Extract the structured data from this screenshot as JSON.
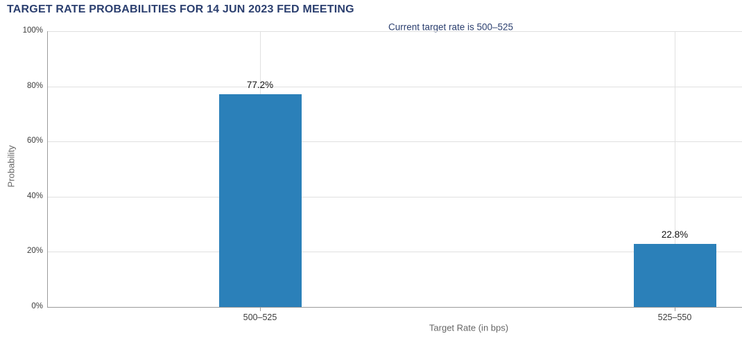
{
  "chart": {
    "title": "TARGET RATE PROBABILITIES FOR 14 JUN 2023 FED MEETING",
    "subtitle": "Current target rate is 500–525"
  },
  "chart_data": {
    "type": "bar",
    "title": "TARGET RATE PROBABILITIES FOR 14 JUN 2023 FED MEETING",
    "subtitle": "Current target rate is 500–525",
    "categories": [
      "500–525",
      "525–550"
    ],
    "values": [
      77.2,
      22.8
    ],
    "data_labels": [
      "77.2%",
      "22.8%"
    ],
    "xlabel": "Target Rate (in bps)",
    "ylabel": "Probability",
    "ylim": [
      0,
      100
    ],
    "yticks": [
      {
        "value": 0,
        "label": "0%"
      },
      {
        "value": 20,
        "label": "20%"
      },
      {
        "value": 40,
        "label": "40%"
      },
      {
        "value": 60,
        "label": "60%"
      },
      {
        "value": 80,
        "label": "80%"
      },
      {
        "value": 100,
        "label": "100%"
      }
    ],
    "grid": true,
    "legend": "none"
  },
  "theme": {
    "navy": "#2b3f6f",
    "bar_color": "#2b80b9",
    "grid_color": "#e0e0e0",
    "axis_line_color": "#9a9a9a",
    "axis_title_color": "#666666"
  }
}
